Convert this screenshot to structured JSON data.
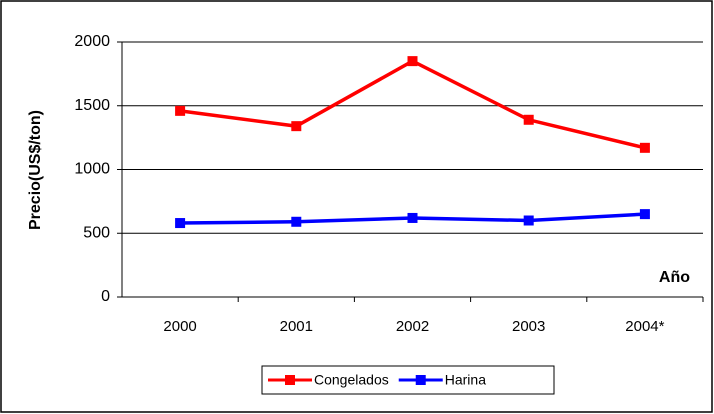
{
  "chart_data": {
    "type": "line",
    "y_label": "Precio(US$/ton)",
    "x_label": "Año",
    "categories": [
      "2000",
      "2001",
      "2002",
      "2003",
      "2004*"
    ],
    "series": [
      {
        "name": "Congelados",
        "color": "#ff0000",
        "values": [
          1460,
          1340,
          1850,
          1390,
          1170
        ]
      },
      {
        "name": "Harina",
        "color": "#0000ff",
        "values": [
          580,
          590,
          620,
          600,
          650
        ]
      }
    ],
    "ylim": [
      0,
      2000
    ],
    "yticks": [
      0,
      500,
      1000,
      1500,
      2000
    ],
    "grid": true,
    "legend": "bottom"
  }
}
